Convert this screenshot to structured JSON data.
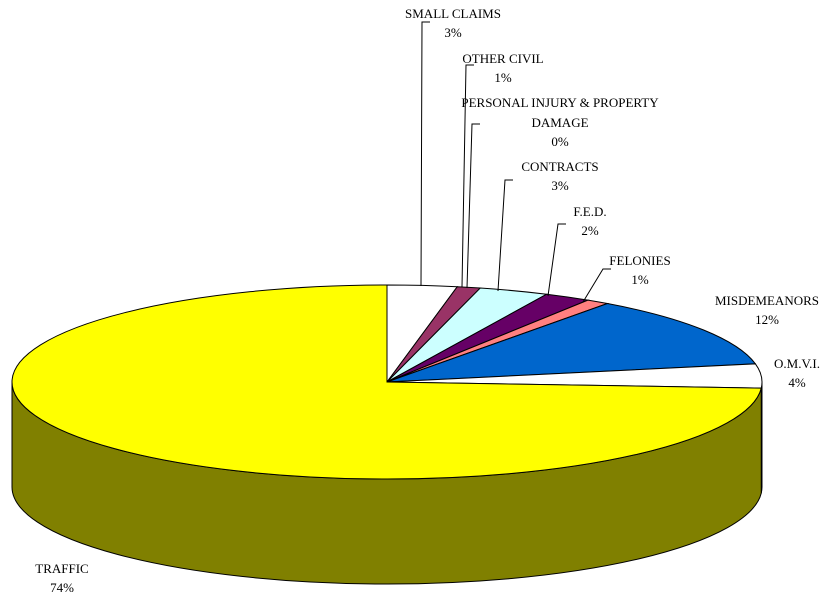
{
  "chart_data": {
    "type": "pie",
    "categories": [
      "SMALL CLAIMS",
      "OTHER CIVIL",
      "PERSONAL INJURY & PROPERTY DAMAGE",
      "CONTRACTS",
      "F.E.D.",
      "FELONIES",
      "MISDEMEANORS",
      "O.M.V.I.",
      "TRAFFIC"
    ],
    "values": [
      3,
      1,
      0,
      3,
      2,
      1,
      12,
      4,
      74
    ],
    "value_labels": [
      "3%",
      "1%",
      "0%",
      "3%",
      "2%",
      "1%",
      "12%",
      "4%",
      "74%"
    ],
    "colors": [
      "#ffffff",
      "#993366",
      "#ffffff",
      "#ccffff",
      "#660066",
      "#ff8080",
      "#0066cc",
      "#ffffff",
      "#ffff00"
    ]
  }
}
